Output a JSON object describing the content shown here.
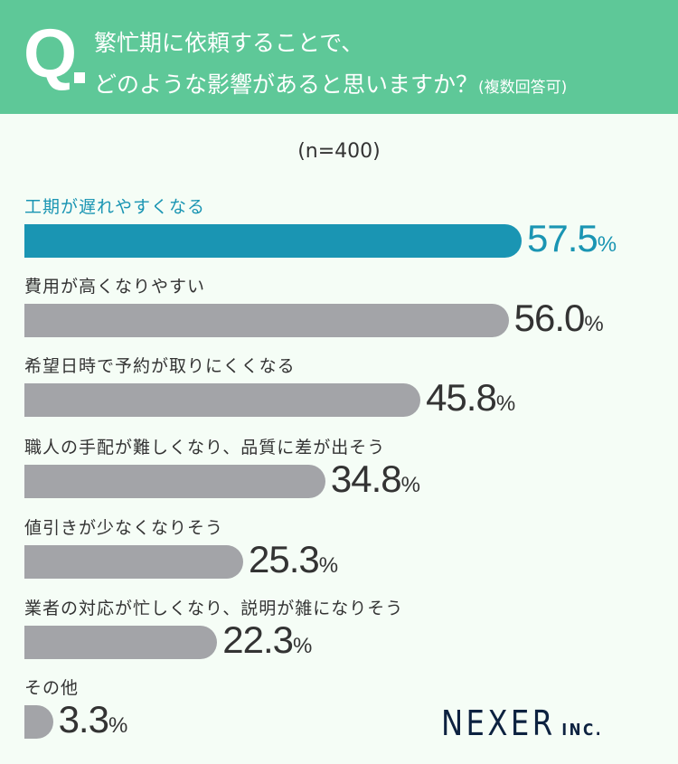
{
  "header": {
    "q": "Q",
    "line1": "繁忙期に依頼することで、",
    "line2": "どのような影響があると思いますか？",
    "note": "(複数回答可)"
  },
  "sample": "(n=400)",
  "colors": {
    "header": "#5ec898",
    "highlight": "#1a95b3",
    "bar": "#a3a4a8",
    "background": "#f5fdf6"
  },
  "chart_data": {
    "type": "bar",
    "orientation": "horizontal",
    "unit": "%",
    "categories": [
      "工期が遅れやすくなる",
      "費用が高くなりやすい",
      "希望日時で予約が取りにくくなる",
      "職人の手配が難しくなり、品質に差が出そう",
      "値引きが少なくなりそう",
      "業者の対応が忙しくなり、説明が雑になりそう",
      "その他"
    ],
    "values": [
      57.5,
      56.0,
      45.8,
      34.8,
      25.3,
      22.3,
      3.3
    ],
    "labels": [
      "57.5",
      "56.0",
      "45.8",
      "34.8",
      "25.3",
      "22.3",
      "3.3"
    ],
    "highlight_index": 0
  },
  "logo": {
    "name": "NEXER",
    "suffix": "INC."
  }
}
